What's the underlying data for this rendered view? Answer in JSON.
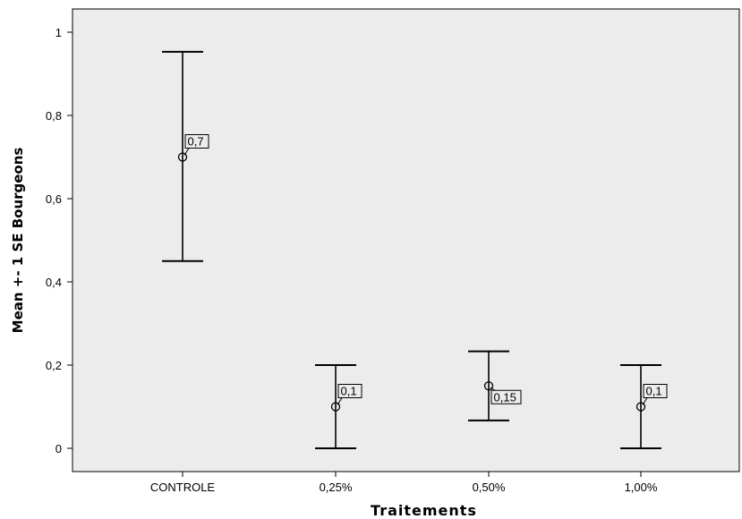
{
  "chart_data": {
    "type": "errorbar",
    "title": "",
    "xlabel": "Traitements",
    "ylabel": "Mean +- 1 SE Bourgeons",
    "categories": [
      "CONTROLE",
      "0,25%",
      "0,50%",
      "1,00%"
    ],
    "means": [
      0.7,
      0.1,
      0.15,
      0.1
    ],
    "lower": [
      0.45,
      0.0,
      0.067,
      0.0
    ],
    "upper": [
      0.953,
      0.2,
      0.233,
      0.2
    ],
    "data_labels": [
      "0,7",
      "0,1",
      "0,15",
      "0,1"
    ],
    "ylim": [
      0,
      1.05
    ],
    "yticks": [
      0,
      0.2,
      0.4,
      0.6,
      0.8,
      1
    ],
    "ytick_labels": [
      "0",
      "0,2",
      "0,4",
      "0,6",
      "0,8",
      "1"
    ],
    "grid": false,
    "background_color": "#ececec"
  }
}
